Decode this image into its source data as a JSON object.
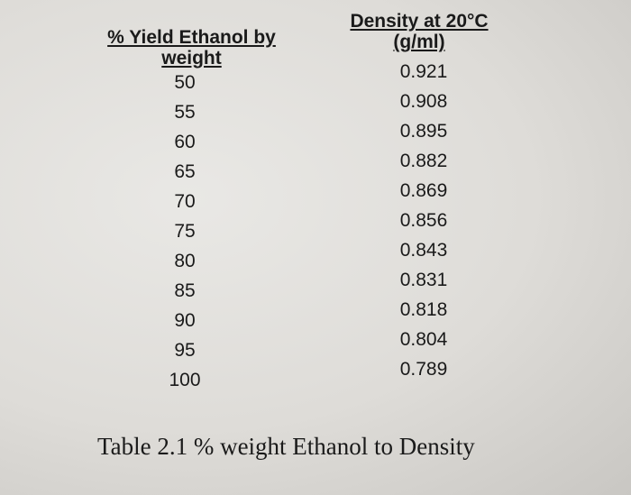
{
  "table": {
    "headers": {
      "yield": "% Yield Ethanol by weight",
      "density": "Density at 20°C (g/ml)"
    },
    "rows": [
      {
        "yield": "50",
        "density": "0.921"
      },
      {
        "yield": "55",
        "density": "0.908"
      },
      {
        "yield": "60",
        "density": "0.895"
      },
      {
        "yield": "65",
        "density": "0.882"
      },
      {
        "yield": "70",
        "density": "0.869"
      },
      {
        "yield": "75",
        "density": "0.856"
      },
      {
        "yield": "80",
        "density": "0.843"
      },
      {
        "yield": "85",
        "density": "0.831"
      },
      {
        "yield": "90",
        "density": "0.818"
      },
      {
        "yield": "95",
        "density": "0.804"
      },
      {
        "yield": "100",
        "density": "0.789"
      }
    ]
  },
  "caption": "Table 2.1 % weight Ethanol to Density"
}
